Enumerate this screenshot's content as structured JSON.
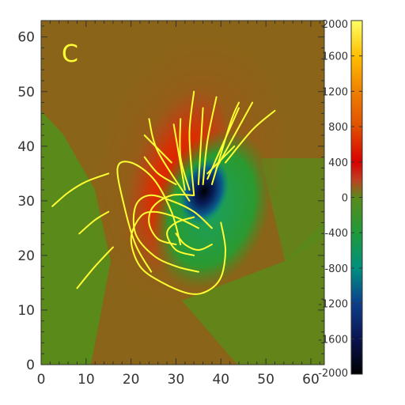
{
  "chart_data": {
    "type": "heatmap",
    "panel_label": "C",
    "xlim": [
      0,
      63
    ],
    "ylim": [
      0,
      63
    ],
    "x_ticks": [
      0,
      10,
      20,
      30,
      40,
      50,
      60
    ],
    "y_ticks": [
      0,
      10,
      20,
      30,
      40,
      50,
      60
    ],
    "x_tick_labels": [
      "0",
      "10",
      "20",
      "30",
      "40",
      "50",
      "60"
    ],
    "y_tick_labels": [
      "0",
      "10",
      "20",
      "30",
      "40",
      "50",
      "60"
    ],
    "colorbar": {
      "range": [
        -2000,
        2000
      ],
      "ticks": [
        2000,
        1600,
        1200,
        800,
        400,
        0,
        -400,
        -800,
        -1200,
        -1600,
        -2000
      ],
      "tick_labels": [
        "2000",
        "1600",
        "1200",
        "800",
        "400",
        "0",
        "-400",
        "-800",
        "-1200",
        "-1600",
        "-2000"
      ],
      "stops": [
        {
          "value": -2000,
          "color": "#000000"
        },
        {
          "value": -1600,
          "color": "#0a1450"
        },
        {
          "value": -1200,
          "color": "#0d3f8c"
        },
        {
          "value": -800,
          "color": "#009080"
        },
        {
          "value": -400,
          "color": "#1f9a3a"
        },
        {
          "value": 0,
          "color": "#5a8a1a"
        },
        {
          "value": 200,
          "color": "#c04020"
        },
        {
          "value": 400,
          "color": "#d80000"
        },
        {
          "value": 800,
          "color": "#e05000"
        },
        {
          "value": 1200,
          "color": "#f08000"
        },
        {
          "value": 1600,
          "color": "#ffbf00"
        },
        {
          "value": 2000,
          "color": "#ffff66"
        }
      ]
    },
    "background_color": "#8a6418",
    "line_color": "#ffff33",
    "field_lines": [
      [
        [
          2.5,
          29
        ],
        [
          6,
          31.5
        ],
        [
          10,
          33.5
        ],
        [
          15,
          35
        ]
      ],
      [
        [
          8.5,
          24
        ],
        [
          12,
          26.5
        ],
        [
          15,
          28
        ]
      ],
      [
        [
          8,
          14
        ],
        [
          12,
          18
        ],
        [
          16,
          21.5
        ]
      ],
      [
        [
          24.5,
          17
        ],
        [
          21,
          22
        ],
        [
          18.5,
          29
        ],
        [
          17,
          36
        ],
        [
          20,
          37
        ],
        [
          25,
          34
        ],
        [
          29,
          28
        ],
        [
          31,
          22
        ]
      ],
      [
        [
          35,
          25
        ],
        [
          30,
          27
        ],
        [
          25,
          28
        ],
        [
          22,
          27
        ],
        [
          20,
          23
        ],
        [
          22,
          18
        ],
        [
          27,
          15
        ],
        [
          33,
          13
        ],
        [
          37,
          13.5
        ],
        [
          40,
          16
        ],
        [
          41,
          21
        ],
        [
          40,
          26
        ]
      ],
      [
        [
          35,
          17
        ],
        [
          30,
          18
        ],
        [
          25,
          20
        ],
        [
          21,
          24
        ],
        [
          21,
          29
        ],
        [
          24,
          31
        ],
        [
          29,
          30
        ],
        [
          34,
          28
        ],
        [
          38,
          25
        ]
      ],
      [
        [
          30,
          22
        ],
        [
          26,
          23
        ],
        [
          24,
          26
        ],
        [
          25,
          29
        ],
        [
          29,
          31
        ],
        [
          34,
          31
        ]
      ],
      [
        [
          34,
          20
        ],
        [
          30,
          21
        ],
        [
          28,
          24
        ],
        [
          30,
          26
        ],
        [
          34,
          27
        ]
      ],
      [
        [
          30,
          24
        ],
        [
          32,
          22
        ],
        [
          35,
          21
        ],
        [
          38,
          22
        ]
      ],
      [
        [
          30,
          33
        ],
        [
          26,
          35
        ],
        [
          23,
          38
        ]
      ],
      [
        [
          29,
          37
        ],
        [
          23,
          42
        ]
      ],
      [
        [
          33,
          30
        ],
        [
          26,
          39
        ],
        [
          24,
          45
        ]
      ],
      [
        [
          32,
          32
        ],
        [
          29.5,
          44
        ]
      ],
      [
        [
          33,
          32
        ],
        [
          31,
          38
        ],
        [
          31,
          45
        ]
      ],
      [
        [
          34,
          31
        ],
        [
          33,
          42
        ],
        [
          34,
          50
        ]
      ],
      [
        [
          36,
          33
        ],
        [
          37,
          41
        ],
        [
          39,
          49
        ]
      ],
      [
        [
          35,
          33
        ],
        [
          36,
          47
        ]
      ],
      [
        [
          38,
          33
        ],
        [
          42,
          44
        ],
        [
          44,
          48
        ]
      ],
      [
        [
          39,
          36
        ],
        [
          43,
          42
        ],
        [
          47,
          48
        ]
      ],
      [
        [
          41,
          37
        ],
        [
          47,
          43
        ],
        [
          52,
          46.5
        ]
      ],
      [
        [
          37,
          35
        ],
        [
          43,
          40
        ]
      ],
      [
        [
          37,
          34
        ],
        [
          44,
          47
        ]
      ]
    ]
  }
}
